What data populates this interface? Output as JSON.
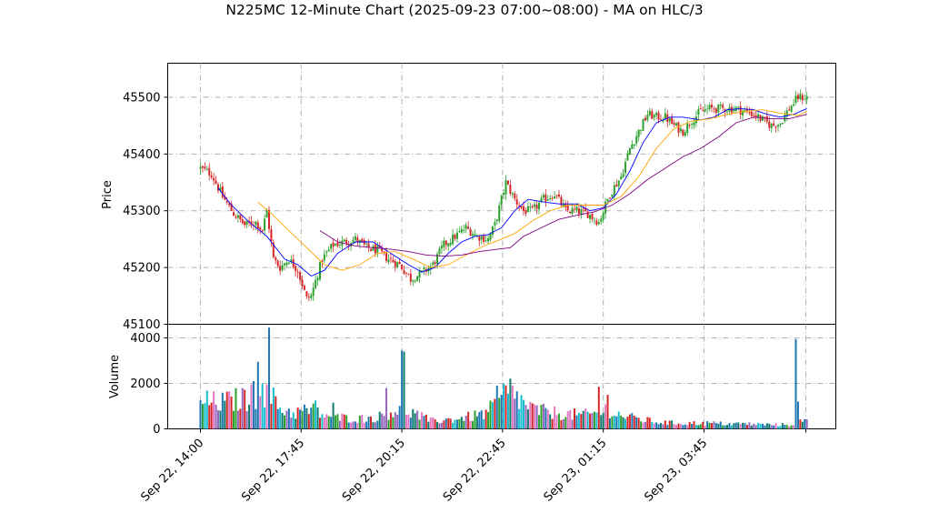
{
  "chart_data": {
    "type": "candlestick",
    "title": "N225MC 12-Minute Chart (2025-09-23 07:00~08:00) - MA on HLC/3",
    "price_panel": {
      "ylabel": "Price",
      "ylim": [
        45100,
        45560
      ],
      "yticks": [
        45100,
        45200,
        45300,
        45400,
        45500
      ],
      "grid": true
    },
    "volume_panel": {
      "ylabel": "Volume",
      "ylim": [
        0,
        4600
      ],
      "yticks": [
        0,
        2000,
        4000
      ],
      "grid": true
    },
    "x_tick_labels": [
      "Sep 22, 14:00",
      "Sep 22, 17:45",
      "Sep 22, 20:15",
      "Sep 22, 22:45",
      "Sep 23, 01:15",
      "Sep 23, 03:45"
    ],
    "bar_count": 180,
    "colors": {
      "up": "#2ca02c",
      "down": "#d62728",
      "ma_fast": "#0000ff",
      "ma_mid": "#ffa500",
      "ma_slow": "#800080",
      "volume_palette": [
        "#1f77b4",
        "#2ca02c",
        "#d62728",
        "#9467bd",
        "#17becf",
        "#e377c2",
        "#0f7b6c"
      ]
    },
    "price_path": [
      [
        0,
        45375
      ],
      [
        5,
        45365
      ],
      [
        10,
        45325
      ],
      [
        15,
        45295
      ],
      [
        20,
        45275
      ],
      [
        25,
        45280
      ],
      [
        28,
        45265
      ],
      [
        30,
        45300
      ],
      [
        33,
        45215
      ],
      [
        36,
        45200
      ],
      [
        40,
        45215
      ],
      [
        44,
        45195
      ],
      [
        48,
        45145
      ],
      [
        50,
        45150
      ],
      [
        55,
        45215
      ],
      [
        60,
        45240
      ],
      [
        65,
        45245
      ],
      [
        70,
        45250
      ],
      [
        75,
        45235
      ],
      [
        80,
        45230
      ],
      [
        85,
        45215
      ],
      [
        90,
        45205
      ],
      [
        95,
        45180
      ],
      [
        100,
        45190
      ],
      [
        105,
        45205
      ],
      [
        110,
        45240
      ],
      [
        115,
        45255
      ],
      [
        120,
        45270
      ],
      [
        125,
        45255
      ],
      [
        130,
        45250
      ],
      [
        133,
        45275
      ],
      [
        138,
        45350
      ],
      [
        142,
        45320
      ],
      [
        146,
        45300
      ],
      [
        150,
        45300
      ],
      [
        155,
        45320
      ],
      [
        160,
        45330
      ],
      [
        165,
        45300
      ],
      [
        170,
        45300
      ],
      [
        175,
        45295
      ],
      [
        180,
        45280
      ],
      [
        185,
        45330
      ],
      [
        190,
        45360
      ],
      [
        194,
        45410
      ],
      [
        198,
        45440
      ],
      [
        202,
        45470
      ],
      [
        206,
        45465
      ],
      [
        210,
        45465
      ],
      [
        214,
        45450
      ],
      [
        218,
        45440
      ],
      [
        222,
        45460
      ],
      [
        226,
        45475
      ],
      [
        230,
        45480
      ],
      [
        234,
        45480
      ],
      [
        238,
        45480
      ],
      [
        242,
        45480
      ],
      [
        246,
        45475
      ],
      [
        250,
        45470
      ],
      [
        254,
        45460
      ],
      [
        258,
        45450
      ],
      [
        262,
        45455
      ],
      [
        266,
        45480
      ],
      [
        270,
        45500
      ],
      [
        274,
        45500
      ]
    ],
    "ma_series": [
      {
        "name": "MA fast",
        "color": "#0000ff",
        "points": [
          [
            8,
            45340
          ],
          [
            14,
            45310
          ],
          [
            22,
            45280
          ],
          [
            30,
            45255
          ],
          [
            38,
            45215
          ],
          [
            44,
            45205
          ],
          [
            50,
            45185
          ],
          [
            56,
            45195
          ],
          [
            62,
            45225
          ],
          [
            70,
            45245
          ],
          [
            78,
            45245
          ],
          [
            86,
            45225
          ],
          [
            94,
            45205
          ],
          [
            100,
            45192
          ],
          [
            106,
            45200
          ],
          [
            112,
            45225
          ],
          [
            118,
            45245
          ],
          [
            124,
            45255
          ],
          [
            130,
            45258
          ],
          [
            136,
            45270
          ],
          [
            142,
            45300
          ],
          [
            148,
            45320
          ],
          [
            156,
            45315
          ],
          [
            162,
            45312
          ],
          [
            170,
            45312
          ],
          [
            176,
            45300
          ],
          [
            182,
            45305
          ],
          [
            188,
            45330
          ],
          [
            194,
            45370
          ],
          [
            200,
            45420
          ],
          [
            206,
            45455
          ],
          [
            212,
            45465
          ],
          [
            218,
            45465
          ],
          [
            226,
            45460
          ],
          [
            232,
            45465
          ],
          [
            238,
            45478
          ],
          [
            244,
            45480
          ],
          [
            250,
            45478
          ],
          [
            256,
            45470
          ],
          [
            262,
            45465
          ],
          [
            268,
            45470
          ],
          [
            274,
            45480
          ]
        ]
      },
      {
        "name": "MA mid",
        "color": "#ffa500",
        "points": [
          [
            26,
            45315
          ],
          [
            32,
            45295
          ],
          [
            40,
            45265
          ],
          [
            48,
            45235
          ],
          [
            56,
            45205
          ],
          [
            64,
            45195
          ],
          [
            72,
            45205
          ],
          [
            80,
            45225
          ],
          [
            88,
            45228
          ],
          [
            96,
            45215
          ],
          [
            104,
            45200
          ],
          [
            112,
            45205
          ],
          [
            120,
            45222
          ],
          [
            128,
            45238
          ],
          [
            136,
            45250
          ],
          [
            142,
            45260
          ],
          [
            150,
            45282
          ],
          [
            158,
            45300
          ],
          [
            166,
            45310
          ],
          [
            174,
            45310
          ],
          [
            182,
            45310
          ],
          [
            190,
            45325
          ],
          [
            198,
            45360
          ],
          [
            206,
            45410
          ],
          [
            214,
            45445
          ],
          [
            222,
            45458
          ],
          [
            230,
            45462
          ],
          [
            238,
            45470
          ],
          [
            246,
            45475
          ],
          [
            254,
            45478
          ],
          [
            262,
            45472
          ],
          [
            270,
            45468
          ],
          [
            274,
            45475
          ]
        ]
      },
      {
        "name": "MA slow",
        "color": "#800080",
        "points": [
          [
            54,
            45265
          ],
          [
            62,
            45245
          ],
          [
            70,
            45238
          ],
          [
            78,
            45235
          ],
          [
            86,
            45232
          ],
          [
            94,
            45228
          ],
          [
            102,
            45222
          ],
          [
            110,
            45220
          ],
          [
            118,
            45222
          ],
          [
            126,
            45228
          ],
          [
            134,
            45232
          ],
          [
            140,
            45235
          ],
          [
            146,
            45255
          ],
          [
            154,
            45270
          ],
          [
            162,
            45285
          ],
          [
            170,
            45292
          ],
          [
            178,
            45298
          ],
          [
            186,
            45310
          ],
          [
            194,
            45330
          ],
          [
            202,
            45355
          ],
          [
            210,
            45375
          ],
          [
            218,
            45395
          ],
          [
            226,
            45410
          ],
          [
            234,
            45430
          ],
          [
            242,
            45455
          ],
          [
            250,
            45465
          ],
          [
            258,
            45462
          ],
          [
            266,
            45462
          ],
          [
            274,
            45470
          ]
        ]
      }
    ],
    "volume_profile": [
      [
        0,
        1200
      ],
      [
        10,
        1150
      ],
      [
        18,
        1300
      ],
      [
        24,
        1400
      ],
      [
        30,
        1700
      ],
      [
        36,
        900
      ],
      [
        42,
        700
      ],
      [
        50,
        850
      ],
      [
        56,
        600
      ],
      [
        62,
        500
      ],
      [
        72,
        450
      ],
      [
        80,
        500
      ],
      [
        90,
        900
      ],
      [
        96,
        700
      ],
      [
        104,
        350
      ],
      [
        112,
        400
      ],
      [
        120,
        500
      ],
      [
        128,
        650
      ],
      [
        136,
        1200
      ],
      [
        140,
        1700
      ],
      [
        146,
        1100
      ],
      [
        152,
        800
      ],
      [
        160,
        700
      ],
      [
        166,
        650
      ],
      [
        172,
        600
      ],
      [
        180,
        700
      ],
      [
        184,
        900
      ],
      [
        188,
        650
      ],
      [
        194,
        500
      ],
      [
        200,
        400
      ],
      [
        206,
        300
      ],
      [
        214,
        250
      ],
      [
        222,
        250
      ],
      [
        230,
        250
      ],
      [
        238,
        220
      ],
      [
        246,
        220
      ],
      [
        252,
        200
      ],
      [
        260,
        180
      ],
      [
        266,
        180
      ],
      [
        270,
        300
      ],
      [
        274,
        350
      ]
    ],
    "volume_spikes": [
      [
        24,
        2100
      ],
      [
        26,
        2950
      ],
      [
        28,
        2000
      ],
      [
        30,
        1950
      ],
      [
        31,
        4450
      ],
      [
        52,
        1250
      ],
      [
        60,
        1150
      ],
      [
        84,
        1800
      ],
      [
        91,
        3450
      ],
      [
        92,
        3400
      ],
      [
        134,
        1900
      ],
      [
        137,
        2000
      ],
      [
        180,
        1850
      ],
      [
        184,
        1500
      ],
      [
        269,
        3950
      ],
      [
        270,
        1200
      ]
    ]
  }
}
